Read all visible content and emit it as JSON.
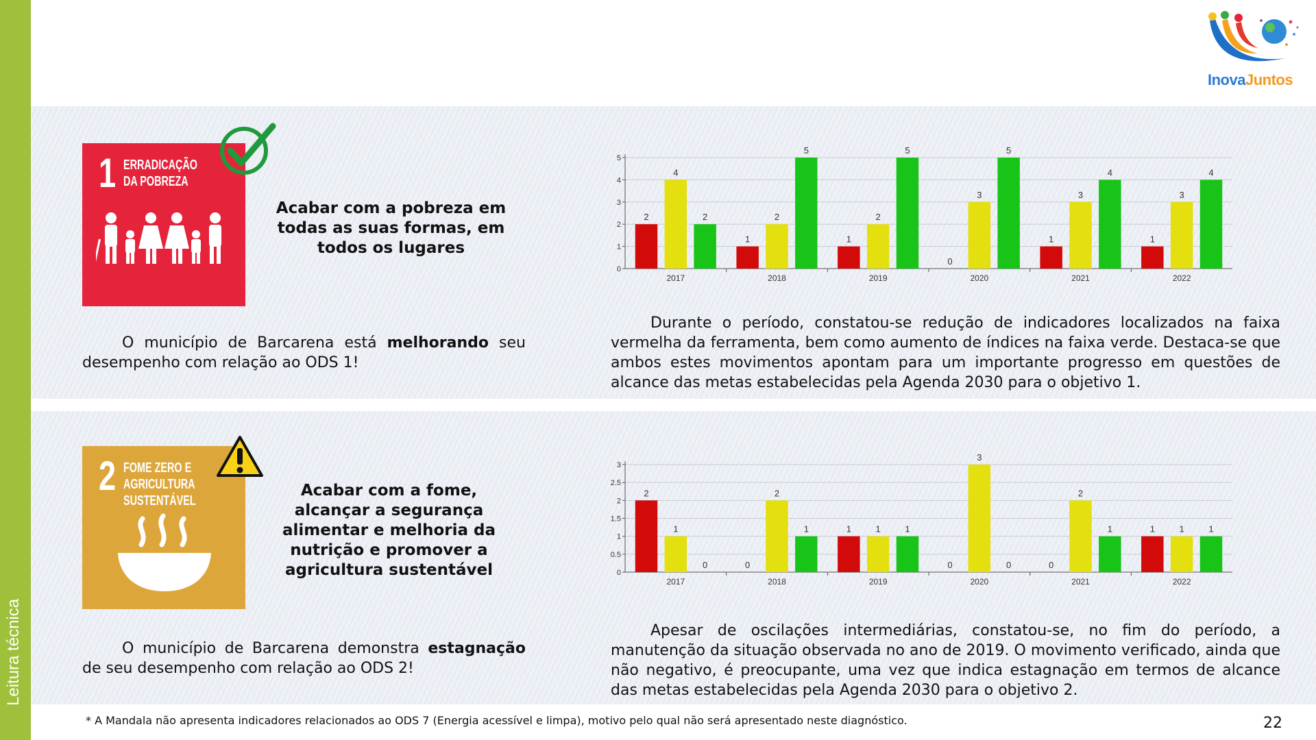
{
  "sidebar": {
    "label": "Leitura técnica"
  },
  "logo": {
    "part1": "Inova",
    "part2": "Juntos",
    "color1": "#2d7bd1",
    "color2": "#f39a1e"
  },
  "section1": {
    "sdg_number": "1",
    "sdg_title_line1": "ERRADICAÇÃO",
    "sdg_title_line2": "DA POBREZA",
    "sdg_color": "#e5243b",
    "status_icon": "checkmark-icon",
    "goal_text": "Acabar com a pobreza em todas as suas formas, em todos os lugares",
    "summary_pre": "O município de Barcarena está ",
    "summary_bold": "melhorando",
    "summary_post": " seu desempenho com relação ao ODS 1!",
    "analysis": "Durante o período, constatou-se redução de indicadores localizados na faixa vermelha da ferramenta, bem como aumento de índices na faixa verde. Destaca-se que ambos estes movimentos apontam para um importante progresso em questões de alcance das metas estabelecidas pela Agenda 2030 para o objetivo 1."
  },
  "section2": {
    "sdg_number": "2",
    "sdg_title_line1": "FOME ZERO E",
    "sdg_title_line2": "AGRICULTURA",
    "sdg_title_line3": "SUSTENTÁVEL",
    "sdg_color": "#dda63a",
    "status_icon": "warning-icon",
    "goal_text": "Acabar com a fome, alcançar a segurança alimentar e melhoria da nutrição e promover a agricultura sustentável",
    "summary_pre": "O município de Barcarena demonstra ",
    "summary_bold": "estagnação",
    "summary_post": " de seu desempenho com relação ao ODS 2!",
    "analysis": "Apesar de oscilações intermediárias, constatou-se, no fim do período, a manutenção da situação observada no ano de 2019. O movimento verificado, ainda que não negativo, é preocupante, uma vez que indica estagnação em termos de alcance das metas estabelecidas pela Agenda 2030 para o objetivo 2."
  },
  "footnote": "* A Mandala não apresenta indicadores relacionados ao ODS 7 (Energia acessível e limpa), motivo pelo qual não será apresentado neste diagnóstico.",
  "page_number": "22",
  "chart_data": [
    {
      "type": "bar",
      "categories": [
        "2017",
        "2018",
        "2019",
        "2020",
        "2021",
        "2022"
      ],
      "series": [
        {
          "values": [
            2,
            1,
            1,
            0,
            1,
            1
          ],
          "color": "#d20a0a"
        },
        {
          "values": [
            4,
            2,
            2,
            3,
            3,
            3
          ],
          "color": "#e4e010"
        },
        {
          "values": [
            2,
            5,
            5,
            5,
            4,
            4
          ],
          "color": "#18c418"
        }
      ],
      "ylim": [
        0,
        5
      ],
      "yticks": [
        "0",
        "1",
        "2",
        "3",
        "4",
        "5"
      ],
      "grid": true
    },
    {
      "type": "bar",
      "categories": [
        "2017",
        "2018",
        "2019",
        "2020",
        "2021",
        "2022"
      ],
      "series": [
        {
          "values": [
            2,
            0,
            1,
            0,
            0,
            1
          ],
          "color": "#d20a0a"
        },
        {
          "values": [
            1,
            2,
            1,
            3,
            2,
            1
          ],
          "color": "#e4e010"
        },
        {
          "values": [
            0,
            1,
            1,
            0,
            1,
            1
          ],
          "color": "#18c418"
        }
      ],
      "ylim": [
        0,
        3
      ],
      "yticks": [
        "0",
        "0.5",
        "1",
        "1.5",
        "2",
        "2.5",
        "3"
      ],
      "grid": true
    }
  ]
}
